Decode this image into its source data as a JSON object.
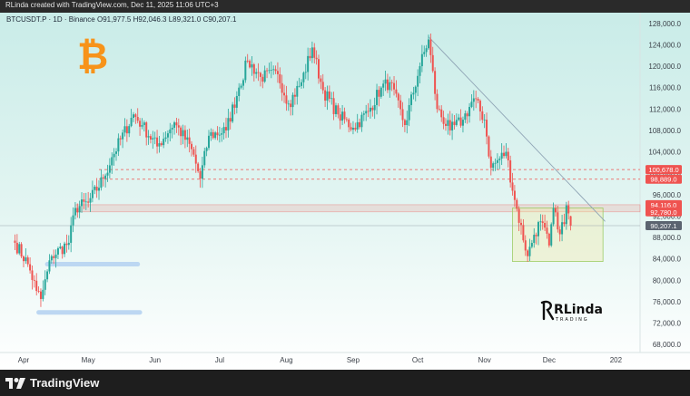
{
  "header": {
    "text": "RLinda created with TradingView.com, Dec 11, 2025 11:06 UTC+3"
  },
  "legend": {
    "symbol": "BTCUSDT.P · 1D · Binance",
    "ohlc": "O91,977.5  H92,046.3  L89,321.0  C90,207.1"
  },
  "brand": {
    "name": "RLinda",
    "subtitle": "TRADING"
  },
  "footer": {
    "logo_text": "TradingView"
  },
  "colors": {
    "up": "#26a69a",
    "down": "#ef5350",
    "bitcoin": "#f7931a",
    "bg_top": "#cfeeea",
    "bg_bottom": "#ffffff"
  },
  "icons": {
    "bitcoin": "bitcoin-icon",
    "brand": "rlinda-logo-icon",
    "tradingview": "tradingview-logo-icon"
  },
  "chart_data": {
    "type": "candlestick",
    "x_ticks": [
      "Apr",
      "May",
      "Jun",
      "Jul",
      "Aug",
      "Sep",
      "Oct",
      "Nov",
      "Dec",
      "202"
    ],
    "y_ticks": [
      "68,000.0",
      "72,000.0",
      "76,000.0",
      "80,000.0",
      "84,000.0",
      "88,000.0",
      "92,000.0",
      "96,000.0",
      "100,000.0",
      "104,000.0",
      "108,000.0",
      "112,000.0",
      "116,000.0",
      "120,000.0",
      "124,000.0",
      "128,000.0"
    ],
    "ylim": [
      66500,
      130000
    ],
    "price_labels": [
      {
        "value": 100678,
        "text": "100,678.0",
        "color": "#ef5350"
      },
      {
        "value": 98889,
        "text": "98,889.0",
        "color": "#ef5350"
      },
      {
        "value": 94116,
        "text": "94,116.0",
        "color": "#ef5350"
      },
      {
        "value": 92780,
        "text": "92,780.0",
        "color": "#ef5350"
      },
      {
        "value": 90207.1,
        "text": "90,207.1",
        "color": "#5b6470"
      }
    ],
    "series_anchor_points": [
      {
        "date": "2025-03-28",
        "close": 87000
      },
      {
        "date": "2025-04-03",
        "close": 83000
      },
      {
        "date": "2025-04-07",
        "close": 78000
      },
      {
        "date": "2025-04-09",
        "close": 76500
      },
      {
        "date": "2025-04-14",
        "close": 84500
      },
      {
        "date": "2025-04-22",
        "close": 87000
      },
      {
        "date": "2025-04-25",
        "close": 93500
      },
      {
        "date": "2025-05-01",
        "close": 94500
      },
      {
        "date": "2025-05-08",
        "close": 99000
      },
      {
        "date": "2025-05-12",
        "close": 103000
      },
      {
        "date": "2025-05-22",
        "close": 111000
      },
      {
        "date": "2025-05-26",
        "close": 109000
      },
      {
        "date": "2025-06-02",
        "close": 105000
      },
      {
        "date": "2025-06-10",
        "close": 109500
      },
      {
        "date": "2025-06-18",
        "close": 104500
      },
      {
        "date": "2025-06-22",
        "close": 99000
      },
      {
        "date": "2025-06-26",
        "close": 107000
      },
      {
        "date": "2025-07-04",
        "close": 108000
      },
      {
        "date": "2025-07-10",
        "close": 116000
      },
      {
        "date": "2025-07-14",
        "close": 121000
      },
      {
        "date": "2025-07-20",
        "close": 118000
      },
      {
        "date": "2025-07-28",
        "close": 118500
      },
      {
        "date": "2025-08-02",
        "close": 113000
      },
      {
        "date": "2025-08-08",
        "close": 117000
      },
      {
        "date": "2025-08-13",
        "close": 123500
      },
      {
        "date": "2025-08-18",
        "close": 115500
      },
      {
        "date": "2025-08-25",
        "close": 111000
      },
      {
        "date": "2025-09-01",
        "close": 108500
      },
      {
        "date": "2025-09-08",
        "close": 111500
      },
      {
        "date": "2025-09-14",
        "close": 116000
      },
      {
        "date": "2025-09-18",
        "close": 117000
      },
      {
        "date": "2025-09-25",
        "close": 109000
      },
      {
        "date": "2025-10-02",
        "close": 120000
      },
      {
        "date": "2025-10-06",
        "close": 125000
      },
      {
        "date": "2025-10-10",
        "close": 112000
      },
      {
        "date": "2025-10-16",
        "close": 108000
      },
      {
        "date": "2025-10-22",
        "close": 110000
      },
      {
        "date": "2025-10-27",
        "close": 114000
      },
      {
        "date": "2025-11-01",
        "close": 110000
      },
      {
        "date": "2025-11-04",
        "close": 101000
      },
      {
        "date": "2025-11-11",
        "close": 104000
      },
      {
        "date": "2025-11-15",
        "close": 95000
      },
      {
        "date": "2025-11-21",
        "close": 84500
      },
      {
        "date": "2025-11-24",
        "close": 88500
      },
      {
        "date": "2025-11-27",
        "close": 91000
      },
      {
        "date": "2025-12-01",
        "close": 86500
      },
      {
        "date": "2025-12-03",
        "close": 93500
      },
      {
        "date": "2025-12-05",
        "close": 89500
      },
      {
        "date": "2025-12-08",
        "close": 90500
      },
      {
        "date": "2025-12-09",
        "close": 94000
      },
      {
        "date": "2025-12-10",
        "close": 92500
      },
      {
        "date": "2025-12-11",
        "close": 90207.1
      }
    ],
    "levels": [
      {
        "name": "resistance-line-100678",
        "value": 100678,
        "style": "dashed"
      },
      {
        "name": "resistance-line-98889",
        "value": 98889,
        "style": "dashed"
      },
      {
        "name": "resistance-zone",
        "from": 92780,
        "to": 94116
      }
    ],
    "zones": [
      {
        "name": "current-range-box",
        "from_date": "2025-11-14",
        "to_date": "2025-12-26",
        "low": 83500,
        "high": 93500
      },
      {
        "name": "support-marker-upper",
        "from_date": "2025-04-12",
        "to_date": "2025-05-24",
        "value": 83000
      },
      {
        "name": "support-marker-lower",
        "from_date": "2025-04-08",
        "to_date": "2025-05-25",
        "value": 74000
      }
    ],
    "trendline": {
      "from_date": "2025-10-06",
      "from_value": 125500,
      "to_date": "2025-12-27",
      "to_value": 91000
    }
  }
}
